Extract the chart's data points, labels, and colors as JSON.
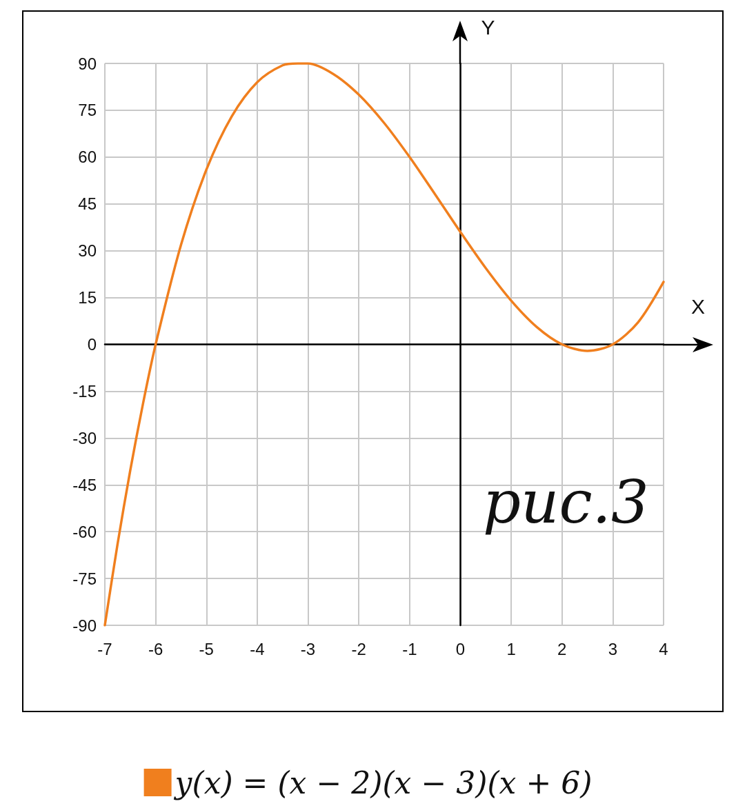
{
  "chart_data": {
    "type": "line",
    "xlabel": "X",
    "ylabel": "Y",
    "x": [
      -7,
      -6.75,
      -6.5,
      -6.25,
      -6,
      -5.5,
      -5,
      -4.5,
      -4,
      -3.5,
      -3.2,
      -3,
      -2.5,
      -2,
      -1.5,
      -1,
      -0.5,
      0,
      0.5,
      1,
      1.5,
      2,
      2.5,
      3,
      3.5,
      4
    ],
    "series": [
      {
        "name": "y(x) = (x − 2)(x − 3)(x + 6)",
        "color": "#f07f1e",
        "values": [
          -90,
          -64,
          -40.4,
          -19.1,
          0,
          31.9,
          56,
          73.1,
          84,
          89.4,
          90,
          90,
          86.6,
          80,
          70.9,
          60,
          48.1,
          36,
          24.4,
          14,
          5.6,
          0,
          -2.1,
          0,
          7.1,
          20
        ]
      }
    ],
    "xlim": [
      -7,
      4
    ],
    "xticks": [
      -7,
      -6,
      -5,
      -4,
      -3,
      -2,
      -1,
      0,
      1,
      2,
      3,
      4
    ],
    "ylim": [
      -90,
      90
    ],
    "yticks": [
      -90,
      -75,
      -60,
      -45,
      -30,
      -15,
      0,
      15,
      30,
      45,
      60,
      75,
      90
    ],
    "grid": true,
    "legend": "bottom",
    "marker": "none",
    "line_style": "solid",
    "annotations": [
      "рис.3"
    ]
  }
}
